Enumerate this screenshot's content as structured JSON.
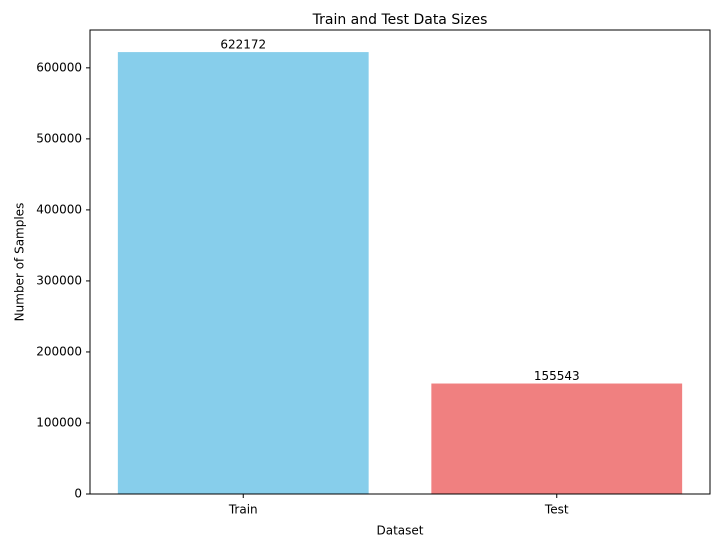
{
  "chart_data": {
    "type": "bar",
    "title": "Train and Test Data Sizes",
    "x_label": "Dataset",
    "y_label": "Number of Samples",
    "categories": [
      "Train",
      "Test"
    ],
    "values": [
      622172,
      155543
    ],
    "colors": [
      "#87ceeb",
      "#f08080"
    ],
    "ylim": [
      0,
      653281
    ],
    "yticks": [
      0,
      100000,
      200000,
      300000,
      400000,
      500000,
      600000
    ],
    "grid": false
  }
}
